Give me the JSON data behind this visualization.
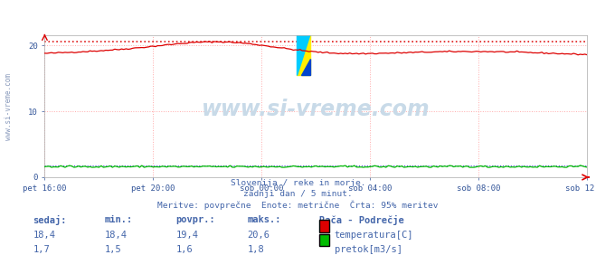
{
  "title": "Rača - Podrečje",
  "bg_color": "#ffffff",
  "plot_bg_color": "#ffffff",
  "grid_color": "#ffaaaa",
  "x_labels": [
    "pet 16:00",
    "pet 20:00",
    "sob 00:00",
    "sob 04:00",
    "sob 08:00",
    "sob 12:00"
  ],
  "x_ticks": [
    0,
    240,
    480,
    720,
    960,
    1200
  ],
  "x_total_minutes": 1200,
  "y_ticks": [
    0,
    10,
    20
  ],
  "y_lim": [
    0,
    21.5
  ],
  "temp_color": "#dd0000",
  "flow_color": "#00bb00",
  "dotted_temp_max": 20.6,
  "dotted_flow_max": 1.8,
  "temp_min": 18.4,
  "temp_max": 20.6,
  "temp_avg": 19.4,
  "temp_now": 18.4,
  "flow_min": 1.5,
  "flow_max": 1.8,
  "flow_avg": 1.6,
  "flow_now": 1.7,
  "subtitle1": "Slovenija / reke in morje.",
  "subtitle2": "zadnji dan / 5 minut.",
  "subtitle3": "Meritve: povprečne  Enote: metrične  Črta: 95% meritev",
  "watermark": "www.si-vreme.com",
  "legend_title": "Rača - Podrečje",
  "legend_temp": "temperatura[C]",
  "legend_flow": "pretok[m3/s]",
  "text_color": "#4466aa",
  "label_color": "#335599",
  "sidebar_text": "www.si-vreme.com"
}
